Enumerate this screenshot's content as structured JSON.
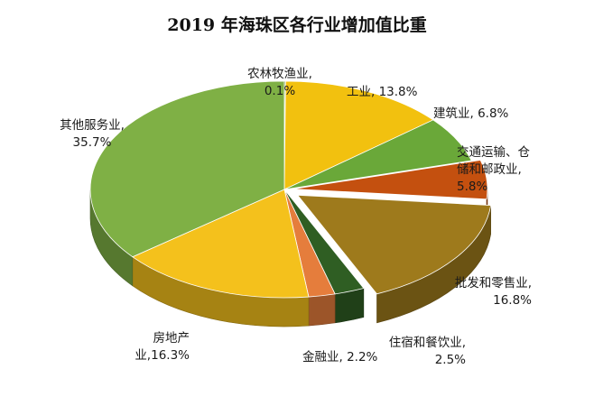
{
  "chart_data": {
    "type": "pie",
    "title": "2019 年海珠区各行业增加值比重",
    "slices": [
      {
        "key": "agri",
        "label": "农林牧渔业",
        "value": 0.1,
        "value_text": "0.1%",
        "color": "#4f7d2c",
        "label_lines": [
          "农林牧渔业,",
          "0.1%"
        ]
      },
      {
        "key": "industry",
        "label": "工业",
        "value": 13.8,
        "value_text": "13.8%",
        "color": "#f2c10f",
        "label_lines": [
          "工业, 13.8%"
        ]
      },
      {
        "key": "constr",
        "label": "建筑业",
        "value": 6.8,
        "value_text": "6.8%",
        "color": "#6aa839",
        "label_lines": [
          "建筑业, 6.8%"
        ]
      },
      {
        "key": "transport",
        "label": "交通运输、仓储和邮政业",
        "value": 5.8,
        "value_text": "5.8%",
        "color": "#c4500f",
        "label_lines": [
          "交通运输、仓",
          "储和邮政业,",
          "5.8%"
        ]
      },
      {
        "key": "retail",
        "label": "批发和零售业",
        "value": 16.8,
        "value_text": "16.8%",
        "color": "#9e7a1c",
        "label_lines": [
          "批发和零售业,",
          "16.8%"
        ]
      },
      {
        "key": "hotel",
        "label": "住宿和餐饮业",
        "value": 2.5,
        "value_text": "2.5%",
        "color": "#2f5e23",
        "label_lines": [
          "住宿和餐饮业,",
          "2.5%"
        ]
      },
      {
        "key": "finance",
        "label": "金融业",
        "value": 2.2,
        "value_text": "2.2%",
        "color": "#e57d3c",
        "label_lines": [
          "金融业, 2.2%"
        ]
      },
      {
        "key": "realty",
        "label": "房地产业",
        "value": 16.3,
        "value_text": "16.3%",
        "color": "#f4c11c",
        "label_lines": [
          "房地产",
          "业,16.3%"
        ]
      },
      {
        "key": "other",
        "label": "其他服务业",
        "value": 35.7,
        "value_text": "35.7%",
        "color": "#7fb045",
        "label_lines": [
          "其他服务业,",
          "35.7%"
        ]
      }
    ]
  }
}
